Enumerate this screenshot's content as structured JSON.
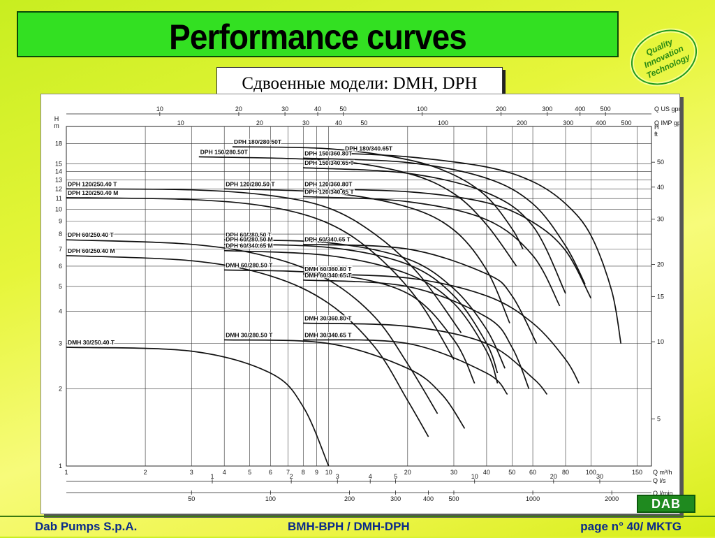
{
  "slide": {
    "title": "Performance curves",
    "subtitle": "Сдвоенные модели: DMH, DPH",
    "badge": [
      "Quality",
      "Innovation",
      "Technology"
    ],
    "logo": "DAB",
    "colors": {
      "title_bg": "#33e022",
      "footer_text": "#0a2a8a",
      "logo_bg": "#1f8a1f"
    }
  },
  "footer": {
    "left": "Dab Pumps S.p.A.",
    "center": "BMH-BPH / DMH-DPH",
    "right": "page n° 40/ MKTG"
  },
  "chart_data": {
    "type": "line",
    "x_scale": "log",
    "y_scale": "log",
    "xlim": [
      1,
      170
    ],
    "ylim": [
      1,
      21
    ],
    "grid": true,
    "x_ticks_m3h": [
      "1",
      "2",
      "3",
      "4",
      "5",
      "6",
      "7",
      "8",
      "9",
      "10",
      "20",
      "30",
      "40",
      "50",
      "60",
      "80",
      "100",
      "150"
    ],
    "x_unit_m3h": "Q m³/h",
    "x_ticks_ls": [
      "1",
      "2",
      "3",
      "4",
      "5",
      "10",
      "20",
      "30"
    ],
    "x_unit_ls": "Q l/s",
    "x_ticks_lmin": [
      "50",
      "100",
      "200",
      "300",
      "400",
      "500",
      "1000",
      "2000"
    ],
    "x_unit_lmin": "Q l/min",
    "top_ticks_usgpm": [
      "10",
      "20",
      "30",
      "40",
      "50",
      "100",
      "200",
      "300",
      "400",
      "500"
    ],
    "top_unit_usgpm": "Q US gpm",
    "top_ticks_impgpm": [
      "10",
      "20",
      "30",
      "40",
      "50",
      "100",
      "200",
      "300",
      "400",
      "500"
    ],
    "top_unit_impgpm": "Q IMP gpm",
    "y_ticks_m": [
      "1",
      "2",
      "3",
      "4",
      "5",
      "6",
      "7",
      "8",
      "9",
      "10",
      "11",
      "12",
      "13",
      "14",
      "15",
      "18"
    ],
    "y_unit_m_line1": "H",
    "y_unit_m_line2": "m",
    "y_ticks_ft": [
      "5",
      "10",
      "15",
      "20",
      "30",
      "40",
      "50"
    ],
    "y_unit_ft_line1": "H",
    "y_unit_ft_line2": "ft",
    "series": [
      {
        "name": "DPH 180/280.50T",
        "x": [
          4.3,
          10,
          20,
          30,
          40,
          50,
          55
        ],
        "y": [
          17.5,
          17.2,
          15.6,
          13.6,
          11.2,
          8.4,
          7.0
        ]
      },
      {
        "name": "DPH 180/340.65T",
        "x": [
          11.4,
          20,
          40,
          60,
          80,
          100,
          120,
          130
        ],
        "y": [
          16.5,
          16.0,
          14.6,
          12.8,
          10.5,
          7.9,
          4.8,
          3.0
        ]
      },
      {
        "name": "DPH 150/280.50T",
        "x": [
          3.2,
          10,
          20,
          30,
          40,
          52
        ],
        "y": [
          16.0,
          15.5,
          13.8,
          11.5,
          8.7,
          6.0
        ]
      },
      {
        "name": "DPH 150/360.80T",
        "x": [
          8,
          20,
          40,
          60,
          80,
          95
        ],
        "y": [
          15.8,
          15.2,
          13.2,
          10.5,
          7.2,
          5.1
        ]
      },
      {
        "name": "DPH 150/340.65 T",
        "x": [
          8,
          20,
          40,
          60,
          80
        ],
        "y": [
          14.5,
          13.8,
          11.6,
          8.6,
          4.7
        ]
      },
      {
        "name": "DPH 120/250.40 T",
        "x": [
          1,
          3,
          6,
          10,
          15,
          22,
          32
        ],
        "y": [
          12.0,
          11.9,
          11.3,
          10.1,
          8.0,
          5.6,
          3.3
        ]
      },
      {
        "name": "DPH 120/280.50 T",
        "x": [
          4,
          10,
          20,
          30,
          40,
          49
        ],
        "y": [
          12.0,
          11.6,
          10.2,
          8.3,
          5.8,
          3.6
        ]
      },
      {
        "name": "DPH 120/360.80T",
        "x": [
          8,
          20,
          40,
          60,
          80,
          100
        ],
        "y": [
          12.0,
          11.7,
          10.6,
          8.9,
          6.9,
          4.5
        ]
      },
      {
        "name": "DPH 120/340.65 T",
        "x": [
          8,
          20,
          40,
          60,
          76
        ],
        "y": [
          11.2,
          10.7,
          9.1,
          6.6,
          4.2
        ]
      },
      {
        "name": "DPH 120/250.40 M",
        "x": [
          1,
          3,
          6,
          10,
          15,
          22,
          30
        ],
        "y": [
          11.1,
          10.9,
          10.2,
          8.8,
          6.7,
          4.4,
          2.6
        ]
      },
      {
        "name": "DPH 60/250.40 T",
        "x": [
          1,
          3,
          6,
          10,
          15,
          20,
          26
        ],
        "y": [
          7.6,
          7.3,
          6.5,
          5.3,
          3.8,
          2.5,
          1.6
        ]
      },
      {
        "name": "DPH 60/280.50 T",
        "x": [
          4,
          10,
          20,
          30,
          40,
          47
        ],
        "y": [
          7.6,
          7.4,
          6.4,
          4.9,
          3.4,
          2.4
        ]
      },
      {
        "name": "DPH 60/280.50 M",
        "x": [
          4,
          10,
          20,
          30,
          40,
          44
        ],
        "y": [
          7.3,
          7.1,
          6.1,
          4.6,
          3.0,
          2.3
        ]
      },
      {
        "name": "DPH 60/340.65 T",
        "x": [
          8,
          20,
          40,
          50,
          62
        ],
        "y": [
          7.3,
          7.0,
          5.6,
          4.6,
          3.0
        ]
      },
      {
        "name": "DPH 60/340.65 M",
        "x": [
          4,
          10,
          20,
          30,
          40,
          44
        ],
        "y": [
          6.9,
          6.6,
          5.6,
          4.3,
          2.8,
          2.1
        ]
      },
      {
        "name": "DPH 60/250.40 M",
        "x": [
          1,
          3,
          6,
          10,
          15,
          20,
          24
        ],
        "y": [
          6.6,
          6.3,
          5.5,
          4.3,
          2.9,
          1.8,
          1.3
        ]
      },
      {
        "name": "DMH 60/280.50 T",
        "x": [
          4,
          10,
          20,
          30,
          36
        ],
        "y": [
          5.8,
          5.6,
          4.7,
          3.1,
          2.1
        ]
      },
      {
        "name": "DMH 60/360.80 T",
        "x": [
          8,
          20,
          40,
          60,
          80,
          90
        ],
        "y": [
          5.6,
          5.4,
          4.6,
          3.6,
          2.6,
          2.1
        ]
      },
      {
        "name": "DMH 60/340.65 T",
        "x": [
          8,
          20,
          40,
          50,
          58
        ],
        "y": [
          5.3,
          5.0,
          3.8,
          2.9,
          2.0
        ]
      },
      {
        "name": "DMH 30/360.80 T",
        "x": [
          8,
          20,
          40,
          60,
          68
        ],
        "y": [
          3.6,
          3.5,
          3.0,
          2.2,
          1.9
        ]
      },
      {
        "name": "DMH 30/280.50 T",
        "x": [
          4,
          10,
          20,
          27,
          33
        ],
        "y": [
          3.1,
          3.0,
          2.4,
          1.9,
          1.4
        ]
      },
      {
        "name": "DMH 30/340.65 T",
        "x": [
          8,
          20,
          40,
          48
        ],
        "y": [
          3.1,
          3.0,
          2.3,
          1.9
        ]
      },
      {
        "name": "DMH 30/250.40 T",
        "x": [
          1,
          3,
          6,
          8,
          10
        ],
        "y": [
          2.9,
          2.8,
          2.3,
          1.7,
          1.0
        ]
      }
    ]
  }
}
